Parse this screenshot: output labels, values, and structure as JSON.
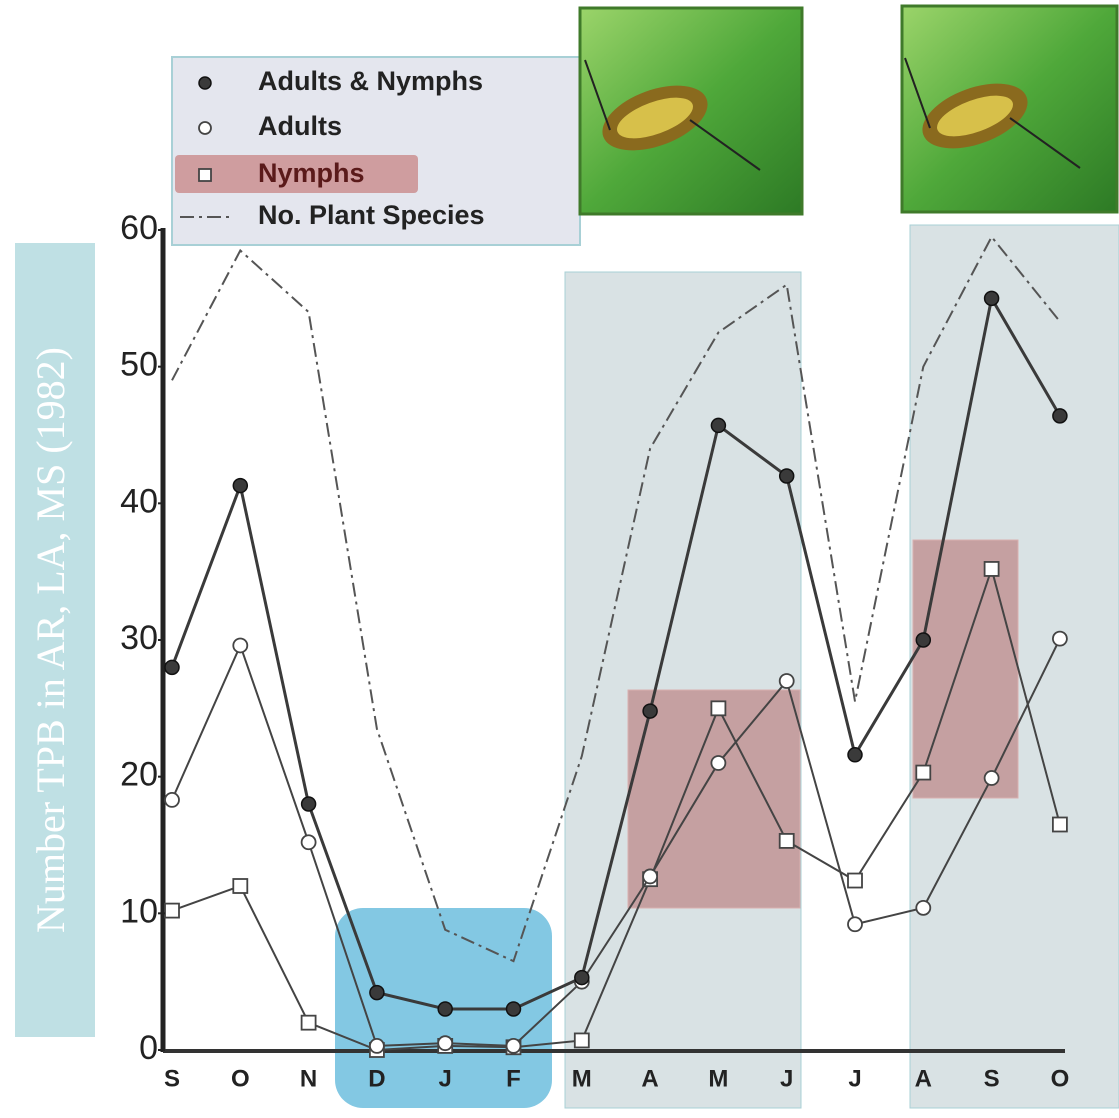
{
  "chart_data": {
    "type": "line",
    "y_label": "Number TPB in AR, LA, MS (1982)",
    "categories": [
      "S",
      "O",
      "N",
      "D",
      "J",
      "F",
      "M",
      "A",
      "M",
      "J",
      "J",
      "A",
      "S",
      "O"
    ],
    "series": [
      {
        "name": "Adults & Nymphs",
        "color": "#3a3a3a",
        "marker": "circle-filled",
        "values": [
          28,
          41.3,
          18,
          4.2,
          3,
          3,
          5.3,
          24.8,
          45.7,
          42,
          21.6,
          30,
          55,
          46.4
        ]
      },
      {
        "name": "Adults",
        "color": "#444444",
        "marker": "circle-open",
        "values": [
          18.3,
          29.6,
          15.2,
          0.3,
          0.5,
          0.3,
          5,
          12.7,
          21,
          27,
          9.2,
          10.4,
          19.9,
          30.1
        ]
      },
      {
        "name": "Nymphs",
        "color": "#444444",
        "marker": "square-open",
        "values": [
          10.2,
          12,
          2,
          0,
          0.3,
          0.2,
          0.7,
          12.5,
          25,
          15.3,
          12.4,
          20.3,
          35.2,
          16.5
        ]
      },
      {
        "name": "No. Plant Species",
        "color": "#555555",
        "marker": "none",
        "dash": "14 5 3 5",
        "values": [
          49,
          58.5,
          54,
          23.5,
          8.8,
          6.5,
          21.5,
          44,
          52.5,
          56,
          25.5,
          50,
          59.5,
          53.3
        ]
      }
    ],
    "ylim": [
      0,
      60
    ],
    "yticks": [
      0,
      10,
      20,
      30,
      40,
      50,
      60
    ],
    "grid": false
  }
}
